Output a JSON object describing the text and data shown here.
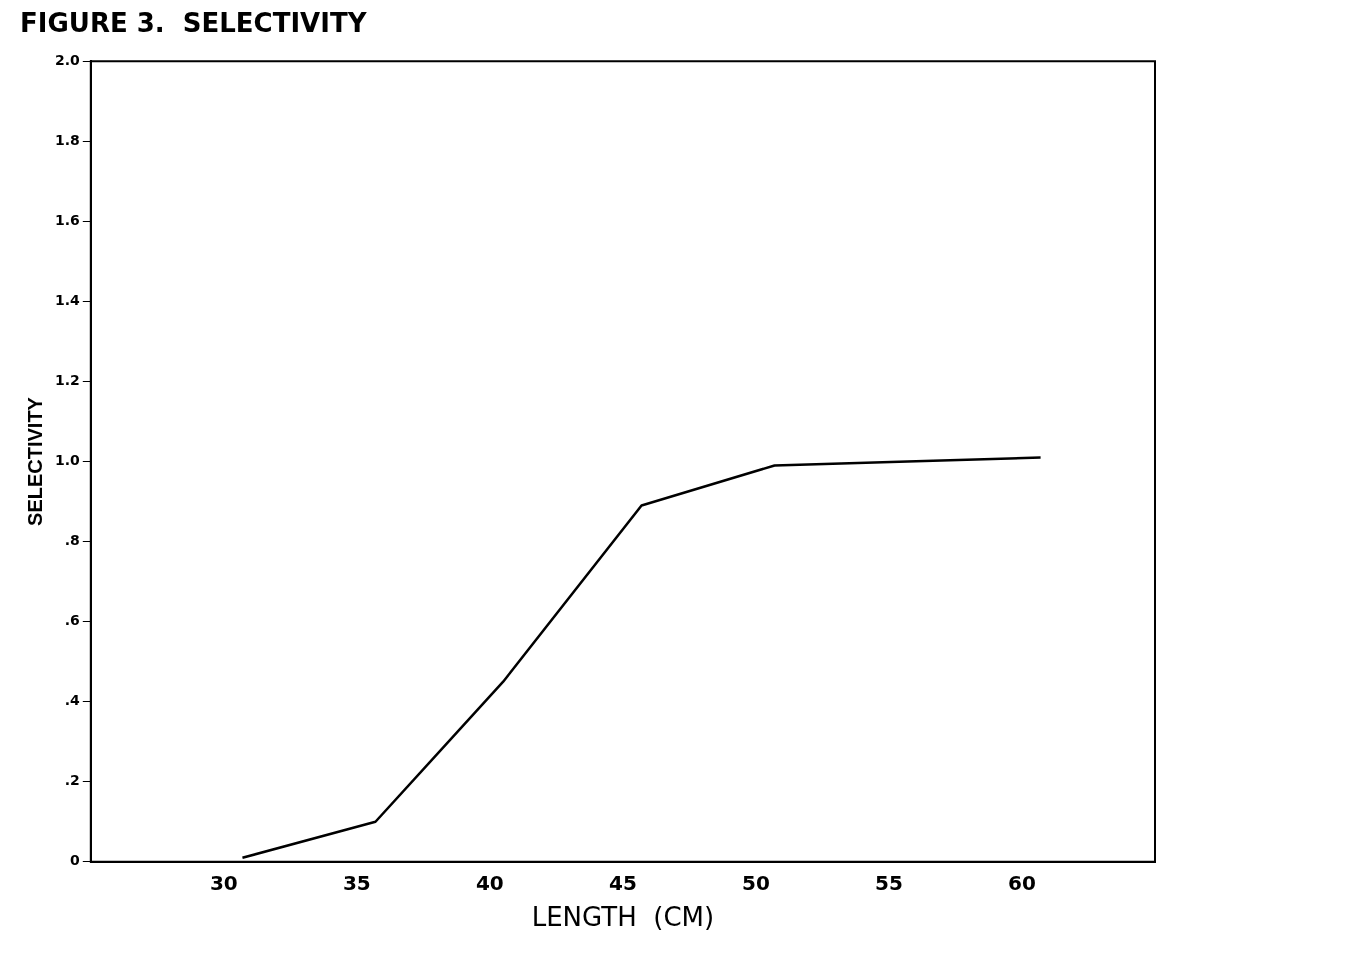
{
  "chart_data": {
    "type": "line",
    "title": "FIGURE 3.  SELECTIVITY",
    "xlabel": "LENGTH  (CM)",
    "ylabel": "SELECTIVITY",
    "x": [
      30.7,
      35.7,
      40.5,
      45.7,
      50.7,
      55.7,
      60.7
    ],
    "series": [
      {
        "color": "#000000",
        "values": [
          0.01,
          0.1,
          0.45,
          0.89,
          0.99,
          1.0,
          1.01
        ]
      }
    ],
    "xlim": [
      25,
      65
    ],
    "xticks": [
      30,
      35,
      40,
      45,
      50,
      55,
      60
    ],
    "ylim": [
      0,
      2
    ],
    "yticks": [
      {
        "value": 0,
        "label": "0"
      },
      {
        "value": 0.2,
        "label": ".2"
      },
      {
        "value": 0.4,
        "label": ".4"
      },
      {
        "value": 0.6,
        "label": ".6"
      },
      {
        "value": 0.8,
        "label": ".8"
      },
      {
        "value": 1,
        "label": "1.0"
      },
      {
        "value": 1.2,
        "label": "1.2"
      },
      {
        "value": 1.4,
        "label": "1.4"
      },
      {
        "value": 1.6,
        "label": "1.6"
      },
      {
        "value": 1.8,
        "label": "1.8"
      },
      {
        "value": 2,
        "label": "2.0"
      }
    ],
    "grid": false,
    "legend": false,
    "marker": "none",
    "line_style": "solid"
  }
}
